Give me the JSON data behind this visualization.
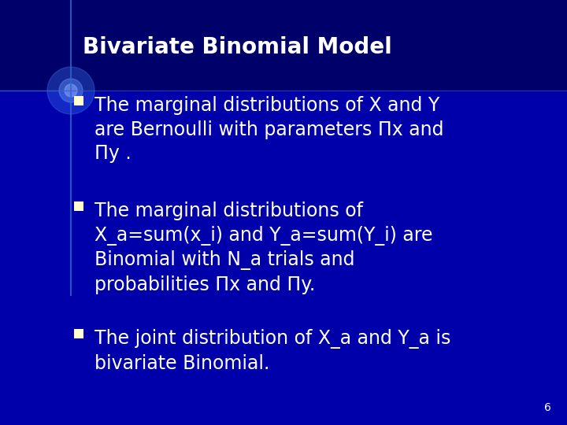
{
  "title": "Bivariate Binomial Model",
  "bg_color_top": "#000066",
  "bg_color_bottom": "#0000CC",
  "bg_color_main": "#0000AA",
  "title_color": "#FFFFFF",
  "text_color": "#FFFFFF",
  "bullet_color": "#FFFFCC",
  "slide_number": "6",
  "bullets": [
    "The marginal distributions of X and Y\nare Bernoulli with parameters Πx and\nΠy .",
    "The marginal distributions of\nX_a=sum(x_i) and Y_a=sum(Y_i) are\nBinomial with N_a trials and\nprobabilities Πx and Πy.",
    "The joint distribution of X_a and Y_a is\nbivariate Binomial."
  ],
  "title_fontsize": 20,
  "bullet_fontsize": 17,
  "slide_number_fontsize": 10,
  "figwidth": 7.2,
  "figheight": 5.4,
  "dpi": 100
}
